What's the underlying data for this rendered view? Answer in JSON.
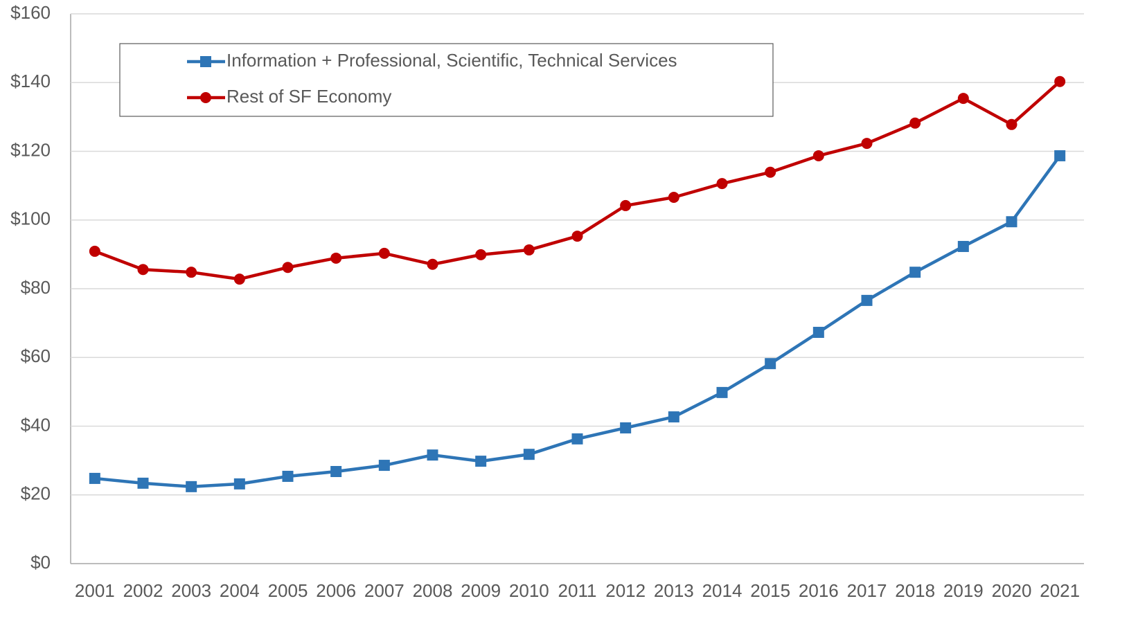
{
  "chart_data": {
    "type": "line",
    "categories": [
      "2001",
      "2002",
      "2003",
      "2004",
      "2005",
      "2006",
      "2007",
      "2008",
      "2009",
      "2010",
      "2011",
      "2012",
      "2013",
      "2014",
      "2015",
      "2016",
      "2017",
      "2018",
      "2019",
      "2020",
      "2021"
    ],
    "series": [
      {
        "name": "Information + Professional, Scientific, Technical Services",
        "color": "#2e75b6",
        "marker": "square",
        "values": [
          24.8,
          23.4,
          22.4,
          23.2,
          25.4,
          26.8,
          28.6,
          31.6,
          29.8,
          31.8,
          36.3,
          39.5,
          42.7,
          49.8,
          58.2,
          67.3,
          76.6,
          84.8,
          92.3,
          99.5,
          118.7
        ]
      },
      {
        "name": "Rest of SF Economy",
        "color": "#c00000",
        "marker": "circle",
        "values": [
          90.9,
          85.6,
          84.8,
          82.8,
          86.2,
          88.9,
          90.3,
          87.1,
          89.9,
          91.3,
          95.3,
          104.2,
          106.6,
          110.6,
          113.9,
          118.7,
          122.3,
          128.2,
          135.4,
          127.8,
          140.3
        ]
      }
    ],
    "ylim": [
      0,
      160
    ],
    "yticks": [
      {
        "value": 0,
        "label": "$0"
      },
      {
        "value": 20,
        "label": "$20"
      },
      {
        "value": 40,
        "label": "$40"
      },
      {
        "value": 60,
        "label": "$60"
      },
      {
        "value": 80,
        "label": "$80"
      },
      {
        "value": 100,
        "label": "$100"
      },
      {
        "value": 120,
        "label": "$120"
      },
      {
        "value": 140,
        "label": "$140"
      },
      {
        "value": 160,
        "label": "$160"
      }
    ],
    "grid": true,
    "legend": "upper left"
  }
}
